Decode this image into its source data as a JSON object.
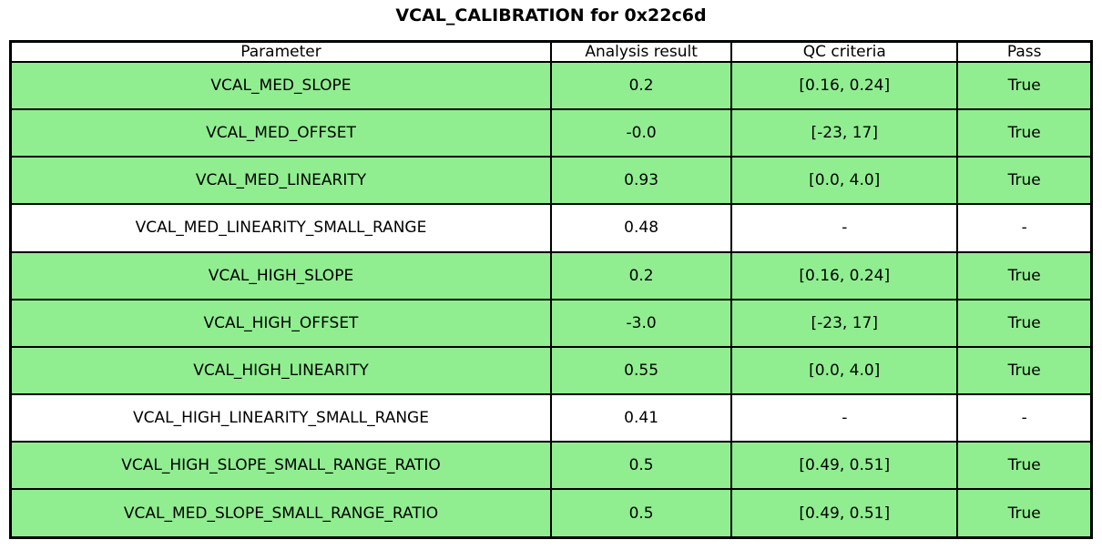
{
  "chart_data": {
    "type": "table",
    "title": "VCAL_CALIBRATION for 0x22c6d",
    "headers": [
      "Parameter",
      "Analysis result",
      "QC criteria",
      "Pass"
    ],
    "rows": [
      {
        "parameter": "VCAL_MED_SLOPE",
        "result": "0.2",
        "criteria": "[0.16, 0.24]",
        "pass": "True",
        "highlight": true
      },
      {
        "parameter": "VCAL_MED_OFFSET",
        "result": "-0.0",
        "criteria": "[-23, 17]",
        "pass": "True",
        "highlight": true
      },
      {
        "parameter": "VCAL_MED_LINEARITY",
        "result": "0.93",
        "criteria": "[0.0, 4.0]",
        "pass": "True",
        "highlight": true
      },
      {
        "parameter": "VCAL_MED_LINEARITY_SMALL_RANGE",
        "result": "0.48",
        "criteria": "-",
        "pass": "-",
        "highlight": false
      },
      {
        "parameter": "VCAL_HIGH_SLOPE",
        "result": "0.2",
        "criteria": "[0.16, 0.24]",
        "pass": "True",
        "highlight": true
      },
      {
        "parameter": "VCAL_HIGH_OFFSET",
        "result": "-3.0",
        "criteria": "[-23, 17]",
        "pass": "True",
        "highlight": true
      },
      {
        "parameter": "VCAL_HIGH_LINEARITY",
        "result": "0.55",
        "criteria": "[0.0, 4.0]",
        "pass": "True",
        "highlight": true
      },
      {
        "parameter": "VCAL_HIGH_LINEARITY_SMALL_RANGE",
        "result": "0.41",
        "criteria": "-",
        "pass": "-",
        "highlight": false
      },
      {
        "parameter": "VCAL_HIGH_SLOPE_SMALL_RANGE_RATIO",
        "result": "0.5",
        "criteria": "[0.49, 0.51]",
        "pass": "True",
        "highlight": true
      },
      {
        "parameter": "VCAL_MED_SLOPE_SMALL_RANGE_RATIO",
        "result": "0.5",
        "criteria": "[0.49, 0.51]",
        "pass": "True",
        "highlight": true
      }
    ],
    "highlight_color": "#90ee90",
    "layout": {
      "grid": true,
      "legend": "none"
    }
  }
}
